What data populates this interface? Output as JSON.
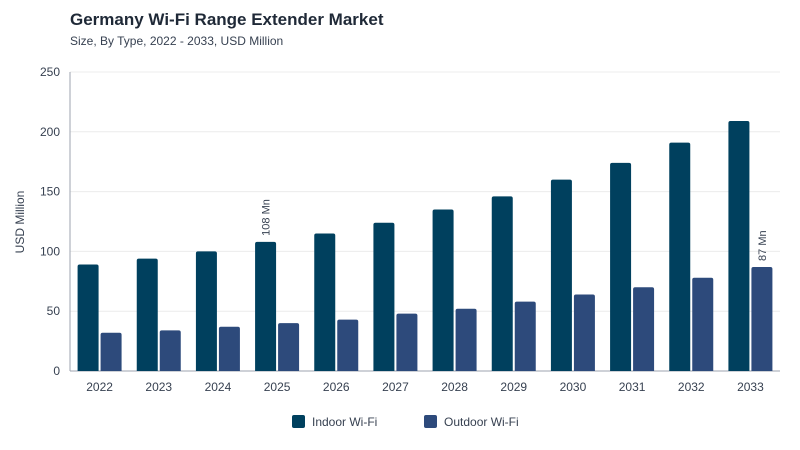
{
  "header": {
    "title": "Germany Wi-Fi Range Extender Market",
    "subtitle": "Size, By Type, 2022 - 2033, USD Million"
  },
  "chart_data": {
    "type": "bar",
    "title": "Germany Wi-Fi Range Extender Market",
    "subtitle": "Size, By Type, 2022 - 2033, USD Million",
    "xlabel": "",
    "ylabel": "USD Million",
    "ylim": [
      0,
      250
    ],
    "yticks": [
      0,
      50,
      100,
      150,
      200,
      250
    ],
    "grid": true,
    "legend_position": "bottom-center",
    "categories": [
      "2022",
      "2023",
      "2024",
      "2025",
      "2026",
      "2027",
      "2028",
      "2029",
      "2030",
      "2031",
      "2032",
      "2033"
    ],
    "series": [
      {
        "name": "Indoor Wi-Fi",
        "color": "#00405e",
        "values": [
          89,
          94,
          100,
          108,
          115,
          124,
          135,
          146,
          160,
          174,
          191,
          209
        ]
      },
      {
        "name": "Outdoor Wi-Fi",
        "color": "#2d4a7b",
        "values": [
          32,
          34,
          37,
          40,
          43,
          48,
          52,
          58,
          64,
          70,
          78,
          87
        ]
      }
    ],
    "annotations": [
      {
        "series": 0,
        "category": "2025",
        "text": "108 Mn"
      },
      {
        "series": 1,
        "category": "2033",
        "text": "87 Mn"
      }
    ]
  }
}
